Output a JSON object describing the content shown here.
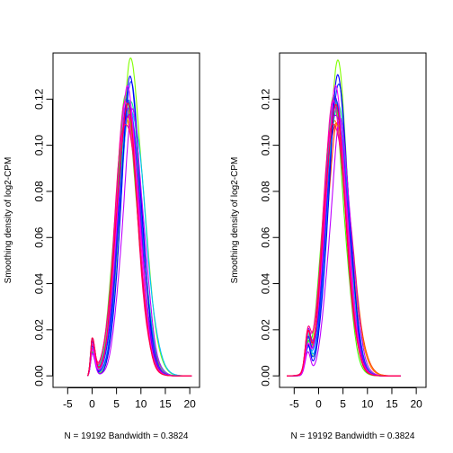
{
  "chart_data": [
    {
      "type": "line",
      "title": "",
      "xlabel": "N = 19192   Bandwidth = 0.3824",
      "ylabel": "Smoothing density of log2-CPM",
      "xlim": [
        -8,
        22
      ],
      "ylim": [
        -0.005,
        0.14
      ],
      "xticks": [
        "-5",
        "0",
        "5",
        "10",
        "15",
        "20"
      ],
      "yticks": [
        "0.00",
        "0.02",
        "0.04",
        "0.06",
        "0.08",
        "0.10",
        "0.12"
      ],
      "x_range": [
        -0.9,
        20.4
      ],
      "left_shoulder": {
        "x": 0.05,
        "y": 0.016
      },
      "series": [
        {
          "color": "#FF0000",
          "peak_x": 7.0,
          "peak": 0.114,
          "spread": 2.2,
          "right_tail": 1.0
        },
        {
          "color": "#FF4000",
          "peak_x": 7.6,
          "peak": 0.109,
          "spread": 2.3,
          "right_tail": 1.0
        },
        {
          "color": "#FF8000",
          "peak_x": 7.2,
          "peak": 0.111,
          "spread": 2.2,
          "right_tail": 1.05
        },
        {
          "color": "#FFBF00",
          "peak_x": 7.0,
          "peak": 0.116,
          "spread": 2.2,
          "right_tail": 1.0
        },
        {
          "color": "#80FF00",
          "peak_x": 7.8,
          "peak": 0.134,
          "spread": 2.0,
          "right_tail": 1.25
        },
        {
          "color": "#40FF00",
          "peak_x": 6.8,
          "peak": 0.118,
          "spread": 2.1,
          "right_tail": 1.1
        },
        {
          "color": "#00FF40",
          "peak_x": 7.2,
          "peak": 0.121,
          "spread": 2.1,
          "right_tail": 1.1
        },
        {
          "color": "#00FF80",
          "peak_x": 7.6,
          "peak": 0.119,
          "spread": 2.2,
          "right_tail": 1.05
        },
        {
          "color": "#00FFBF",
          "peak_x": 7.4,
          "peak": 0.116,
          "spread": 2.3,
          "right_tail": 1.05
        },
        {
          "color": "#00BFFF",
          "peak_x": 8.0,
          "peak": 0.118,
          "spread": 2.2,
          "right_tail": 1.15
        },
        {
          "color": "#0080FF",
          "peak_x": 7.5,
          "peak": 0.12,
          "spread": 2.1,
          "right_tail": 1.0
        },
        {
          "color": "#0040FF",
          "peak_x": 7.8,
          "peak": 0.125,
          "spread": 2.1,
          "right_tail": 1.0
        },
        {
          "color": "#0000FF",
          "peak_x": 7.9,
          "peak": 0.127,
          "spread": 2.0,
          "right_tail": 1.0
        },
        {
          "color": "#4000FF",
          "peak_x": 7.5,
          "peak": 0.12,
          "spread": 2.1,
          "right_tail": 1.0
        },
        {
          "color": "#8000FF",
          "peak_x": 7.4,
          "peak": 0.117,
          "spread": 2.2,
          "right_tail": 1.0
        },
        {
          "color": "#BF00FF",
          "peak_x": 8.3,
          "peak": 0.112,
          "spread": 2.1,
          "right_tail": 1.0
        },
        {
          "color": "#FF00FF",
          "peak_x": 7.3,
          "peak": 0.122,
          "spread": 2.1,
          "right_tail": 1.0
        },
        {
          "color": "#FF00BF",
          "peak_x": 7.0,
          "peak": 0.118,
          "spread": 2.2,
          "right_tail": 1.0
        },
        {
          "color": "#FF0080",
          "peak_x": 6.9,
          "peak": 0.113,
          "spread": 2.2,
          "right_tail": 1.0
        },
        {
          "color": "#FF0040",
          "peak_x": 7.1,
          "peak": 0.116,
          "spread": 2.1,
          "right_tail": 1.0
        }
      ]
    },
    {
      "type": "line",
      "title": "",
      "xlabel": "N = 19192   Bandwidth = 0.3824",
      "ylabel": "Smoothing density of log2-CPM",
      "xlim": [
        -8,
        22
      ],
      "ylim": [
        -0.005,
        0.14
      ],
      "xticks": [
        "-5",
        "0",
        "5",
        "10",
        "15",
        "20"
      ],
      "yticks": [
        "0.00",
        "0.02",
        "0.04",
        "0.06",
        "0.08",
        "0.10",
        "0.12"
      ],
      "x_range": [
        -6.5,
        16.8
      ],
      "left_shoulder": {
        "x": -2.2,
        "y": 0.016
      },
      "series": [
        {
          "color": "#FF0000",
          "peak_x": 3.3,
          "peak": 0.111,
          "spread": 2.2,
          "right_tail": 1.0
        },
        {
          "color": "#FF4000",
          "peak_x": 3.9,
          "peak": 0.106,
          "spread": 2.4,
          "right_tail": 1.05
        },
        {
          "color": "#FF8000",
          "peak_x": 3.6,
          "peak": 0.11,
          "spread": 2.3,
          "right_tail": 1.1
        },
        {
          "color": "#FFBF00",
          "peak_x": 3.4,
          "peak": 0.113,
          "spread": 2.2,
          "right_tail": 1.05
        },
        {
          "color": "#80FF00",
          "peak_x": 3.8,
          "peak": 0.134,
          "spread": 2.0,
          "right_tail": 1.05
        },
        {
          "color": "#40FF00",
          "peak_x": 3.0,
          "peak": 0.118,
          "spread": 2.1,
          "right_tail": 1.0
        },
        {
          "color": "#00FF40",
          "peak_x": 3.4,
          "peak": 0.121,
          "spread": 2.1,
          "right_tail": 1.0
        },
        {
          "color": "#00FF80",
          "peak_x": 3.7,
          "peak": 0.119,
          "spread": 2.2,
          "right_tail": 1.0
        },
        {
          "color": "#00FFBF",
          "peak_x": 3.5,
          "peak": 0.116,
          "spread": 2.2,
          "right_tail": 1.0
        },
        {
          "color": "#00BFFF",
          "peak_x": 3.9,
          "peak": 0.118,
          "spread": 2.1,
          "right_tail": 1.0
        },
        {
          "color": "#0080FF",
          "peak_x": 3.6,
          "peak": 0.12,
          "spread": 2.1,
          "right_tail": 1.0
        },
        {
          "color": "#0040FF",
          "peak_x": 3.9,
          "peak": 0.125,
          "spread": 2.1,
          "right_tail": 1.0
        },
        {
          "color": "#0000FF",
          "peak_x": 4.0,
          "peak": 0.127,
          "spread": 2.0,
          "right_tail": 1.0
        },
        {
          "color": "#4000FF",
          "peak_x": 3.6,
          "peak": 0.12,
          "spread": 2.1,
          "right_tail": 1.0
        },
        {
          "color": "#8000FF",
          "peak_x": 3.5,
          "peak": 0.117,
          "spread": 2.2,
          "right_tail": 1.0
        },
        {
          "color": "#BF00FF",
          "peak_x": 4.4,
          "peak": 0.108,
          "spread": 2.1,
          "right_tail": 1.0
        },
        {
          "color": "#FF00FF",
          "peak_x": 3.5,
          "peak": 0.122,
          "spread": 2.1,
          "right_tail": 1.0
        },
        {
          "color": "#FF00BF",
          "peak_x": 3.2,
          "peak": 0.118,
          "spread": 2.2,
          "right_tail": 1.0
        },
        {
          "color": "#FF0080",
          "peak_x": 3.1,
          "peak": 0.113,
          "spread": 2.2,
          "right_tail": 1.0
        },
        {
          "color": "#FF0040",
          "peak_x": 3.3,
          "peak": 0.116,
          "spread": 2.1,
          "right_tail": 1.0
        }
      ]
    }
  ]
}
